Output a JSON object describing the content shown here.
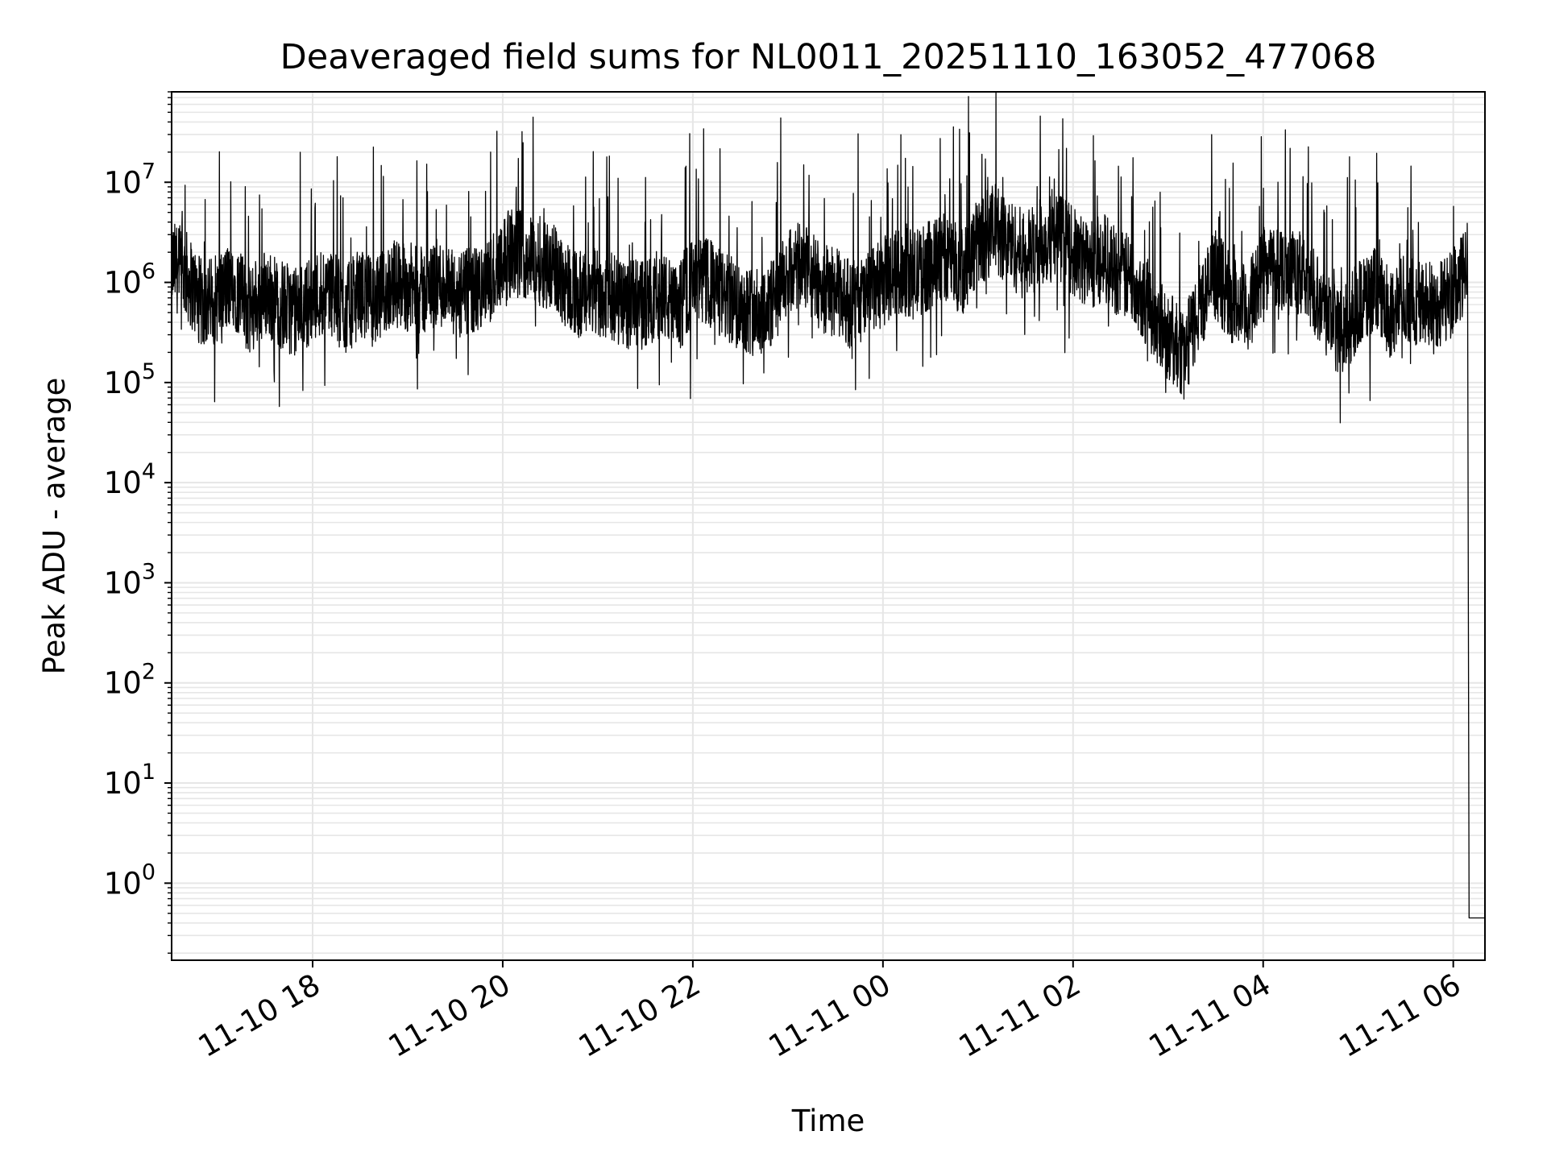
{
  "chart_data": {
    "type": "line",
    "title": "Deaveraged field sums for NL0011_20251110_163052_477068",
    "xlabel": "Time",
    "ylabel": "Peak ADU - average",
    "yscale": "log",
    "ylim": [
      0.17,
      80000000
    ],
    "xlim": [
      "2025-11-10 16:31",
      "2025-11-11 06:20"
    ],
    "grid": true,
    "line_color": "#000000",
    "grid_color": "#e6e6e6",
    "x_ticks": [
      {
        "value": "2025-11-10 18:00",
        "label": "11-10 18"
      },
      {
        "value": "2025-11-10 20:00",
        "label": "11-10 20"
      },
      {
        "value": "2025-11-10 22:00",
        "label": "11-10 22"
      },
      {
        "value": "2025-11-11 00:00",
        "label": "11-11 00"
      },
      {
        "value": "2025-11-11 02:00",
        "label": "11-11 02"
      },
      {
        "value": "2025-11-11 04:00",
        "label": "11-11 04"
      },
      {
        "value": "2025-11-11 06:00",
        "label": "11-11 06"
      }
    ],
    "y_ticks": [
      {
        "value": 1,
        "base": "10",
        "exp": "0"
      },
      {
        "value": 10,
        "base": "10",
        "exp": "1"
      },
      {
        "value": 100,
        "base": "10",
        "exp": "2"
      },
      {
        "value": 1000,
        "base": "10",
        "exp": "3"
      },
      {
        "value": 10000,
        "base": "10",
        "exp": "4"
      },
      {
        "value": 100000,
        "base": "10",
        "exp": "5"
      },
      {
        "value": 1000000,
        "base": "10",
        "exp": "6"
      },
      {
        "value": 10000000,
        "base": "10",
        "exp": "7"
      }
    ],
    "series": [
      {
        "x": [
          "2025-11-10 16:31",
          "2025-11-10 16:40",
          "2025-11-10 16:50",
          "2025-11-10 17:00",
          "2025-11-10 17:10",
          "2025-11-10 17:20",
          "2025-11-10 17:30",
          "2025-11-10 17:40",
          "2025-11-10 17:50",
          "2025-11-10 18:00",
          "2025-11-10 18:10",
          "2025-11-10 18:20",
          "2025-11-10 18:30",
          "2025-11-10 18:40",
          "2025-11-10 18:50",
          "2025-11-10 19:00",
          "2025-11-10 19:10",
          "2025-11-10 19:20",
          "2025-11-10 19:30",
          "2025-11-10 19:40",
          "2025-11-10 19:50",
          "2025-11-10 20:00",
          "2025-11-10 20:10",
          "2025-11-10 20:20",
          "2025-11-10 20:30",
          "2025-11-10 20:40",
          "2025-11-10 20:50",
          "2025-11-10 21:00",
          "2025-11-10 21:10",
          "2025-11-10 21:20",
          "2025-11-10 21:30",
          "2025-11-10 21:40",
          "2025-11-10 21:50",
          "2025-11-10 22:00",
          "2025-11-10 22:10",
          "2025-11-10 22:20",
          "2025-11-10 22:30",
          "2025-11-10 22:40",
          "2025-11-10 22:50",
          "2025-11-10 23:00",
          "2025-11-10 23:10",
          "2025-11-10 23:20",
          "2025-11-10 23:30",
          "2025-11-10 23:40",
          "2025-11-10 23:50",
          "2025-11-11 00:00",
          "2025-11-11 00:10",
          "2025-11-11 00:20",
          "2025-11-11 00:30",
          "2025-11-11 00:40",
          "2025-11-11 00:50",
          "2025-11-11 01:00",
          "2025-11-11 01:10",
          "2025-11-11 01:20",
          "2025-11-11 01:30",
          "2025-11-11 01:40",
          "2025-11-11 01:50",
          "2025-11-11 02:00",
          "2025-11-11 02:10",
          "2025-11-11 02:20",
          "2025-11-11 02:30",
          "2025-11-11 02:40",
          "2025-11-11 02:50",
          "2025-11-11 03:00",
          "2025-11-11 03:10",
          "2025-11-11 03:20",
          "2025-11-11 03:30",
          "2025-11-11 03:40",
          "2025-11-11 03:50",
          "2025-11-11 04:00",
          "2025-11-11 04:10",
          "2025-11-11 04:20",
          "2025-11-11 04:30",
          "2025-11-11 04:40",
          "2025-11-11 04:50",
          "2025-11-11 05:00",
          "2025-11-11 05:10",
          "2025-11-11 05:20",
          "2025-11-11 05:30",
          "2025-11-11 05:40",
          "2025-11-11 05:50",
          "2025-11-11 06:00",
          "2025-11-11 06:05",
          "2025-11-11 06:09",
          "2025-11-11 06:10",
          "2025-11-11 06:20"
        ],
        "values": [
          1500000,
          1200000,
          600000,
          700000,
          1000000,
          500000,
          800000,
          600000,
          500000,
          700000,
          900000,
          500000,
          800000,
          600000,
          1000000,
          900000,
          800000,
          1000000,
          700000,
          800000,
          900000,
          1800000,
          2000000,
          1700000,
          1500000,
          1000000,
          700000,
          800000,
          700000,
          600000,
          600000,
          800000,
          500000,
          1000000,
          1000000,
          700000,
          600000,
          500000,
          600000,
          1200000,
          1500000,
          900000,
          800000,
          600000,
          700000,
          1000000,
          1300000,
          1200000,
          1500000,
          1800000,
          1300000,
          2500000,
          3500000,
          2500000,
          1800000,
          2500000,
          3000000,
          2000000,
          1500000,
          1800000,
          1200000,
          1000000,
          500000,
          300000,
          180000,
          600000,
          1200000,
          700000,
          500000,
          1400000,
          1500000,
          1200000,
          1000000,
          500000,
          300000,
          600000,
          800000,
          500000,
          700000,
          600000,
          600000,
          800000,
          1000000,
          1600000,
          0.45,
          0.45
        ]
      }
    ]
  }
}
